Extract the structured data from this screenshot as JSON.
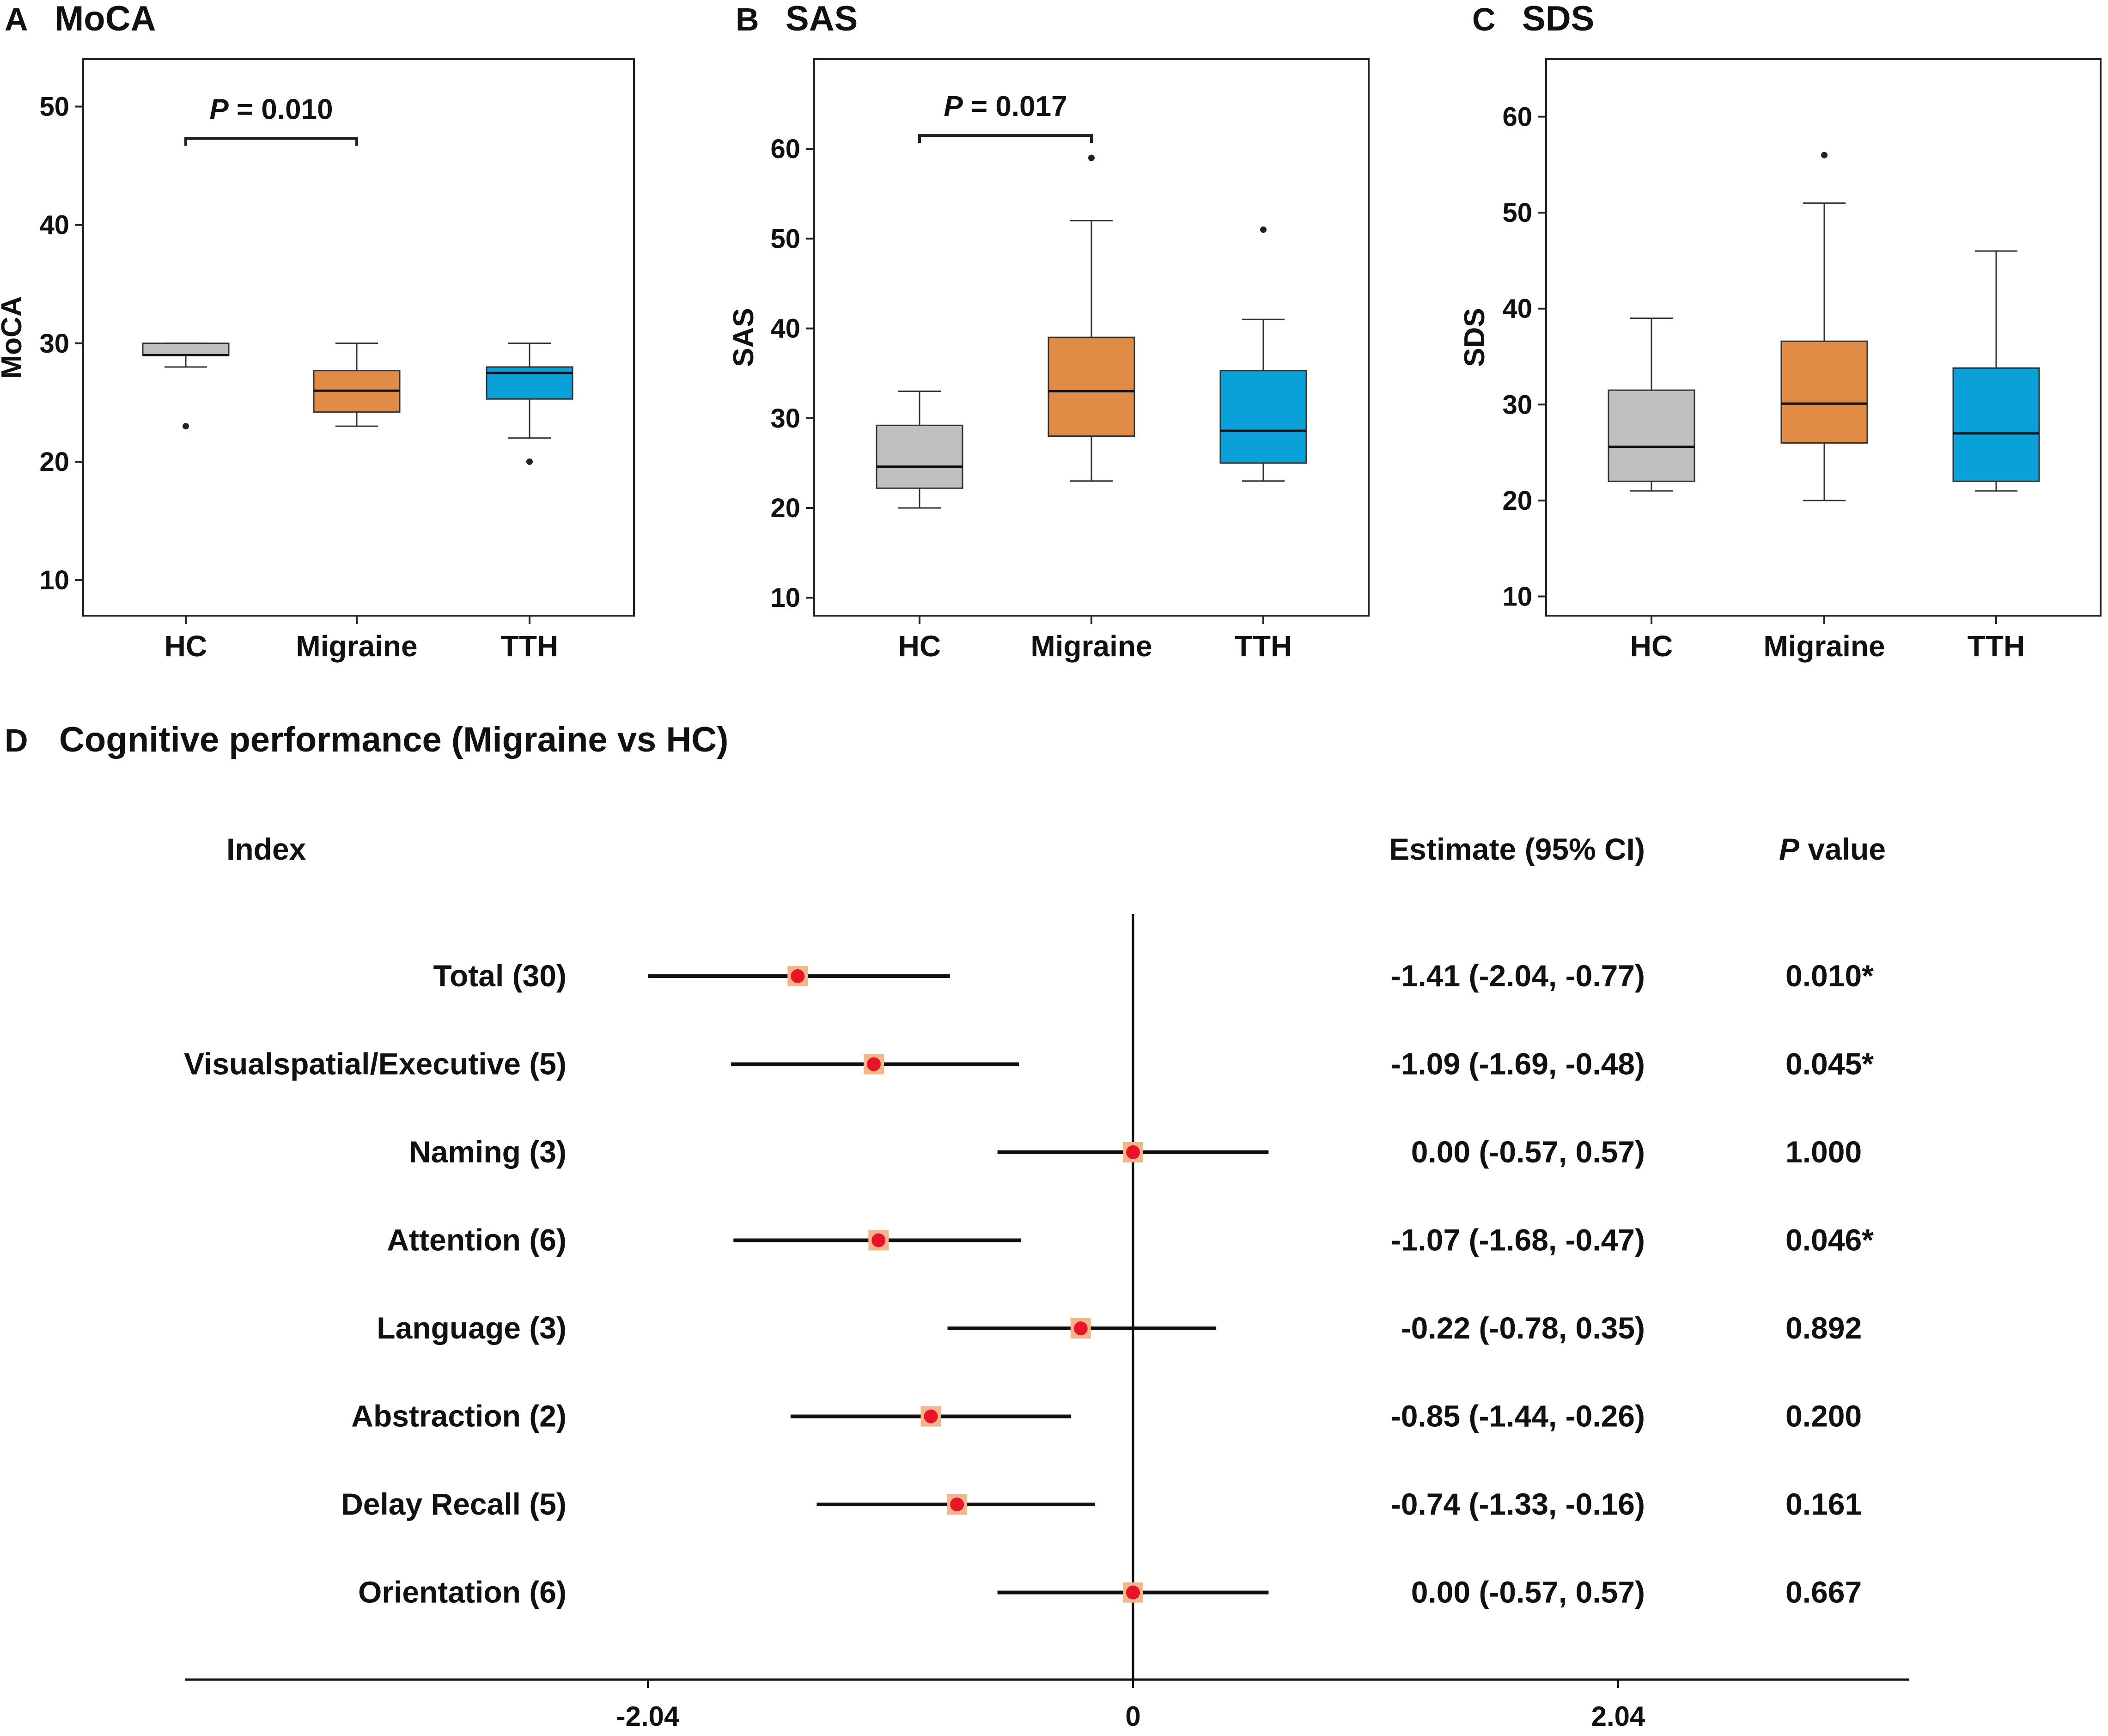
{
  "chart_data": [
    {
      "panel": "A",
      "type": "box",
      "title": "MoCA",
      "ylabel": "MoCA",
      "ylim": [
        7,
        54
      ],
      "yticks": [
        10,
        20,
        30,
        40,
        50
      ],
      "categories": [
        "HC",
        "Migraine",
        "TTH"
      ],
      "colors": [
        "#c0c0c0",
        "#e08c47",
        "#0aa0d8"
      ],
      "boxes": [
        {
          "whisker_low": 28,
          "q1": 29,
          "median": 29,
          "q3": 30,
          "whisker_high": 30,
          "outliers": [
            23
          ]
        },
        {
          "whisker_low": 23,
          "q1": 24.2,
          "median": 26,
          "q3": 27.7,
          "whisker_high": 30,
          "outliers": []
        },
        {
          "whisker_low": 22,
          "q1": 25.3,
          "median": 27.5,
          "q3": 28,
          "whisker_high": 30,
          "outliers": [
            20
          ]
        }
      ],
      "significance": {
        "from": 0,
        "to": 1,
        "y": 47.3,
        "p_label": "P",
        "p_value": "= 0.010"
      }
    },
    {
      "panel": "B",
      "type": "box",
      "title": "SAS",
      "ylabel": "SAS",
      "ylim": [
        8,
        70
      ],
      "yticks": [
        10,
        20,
        30,
        40,
        50,
        60
      ],
      "categories": [
        "HC",
        "Migraine",
        "TTH"
      ],
      "colors": [
        "#c0c0c0",
        "#e08c47",
        "#0aa0d8"
      ],
      "boxes": [
        {
          "whisker_low": 20,
          "q1": 22.2,
          "median": 24.6,
          "q3": 29.2,
          "whisker_high": 33,
          "outliers": []
        },
        {
          "whisker_low": 23,
          "q1": 28,
          "median": 33,
          "q3": 39,
          "whisker_high": 52,
          "outliers": [
            59
          ]
        },
        {
          "whisker_low": 23,
          "q1": 25,
          "median": 28.6,
          "q3": 35.3,
          "whisker_high": 41,
          "outliers": [
            51
          ]
        }
      ],
      "significance": {
        "from": 0,
        "to": 1,
        "y": 61.5,
        "p_label": "P",
        "p_value": "= 0.017"
      }
    },
    {
      "panel": "C",
      "type": "box",
      "title": "SDS",
      "ylabel": "SDS",
      "ylim": [
        8,
        66
      ],
      "yticks": [
        10,
        20,
        30,
        40,
        50,
        60
      ],
      "categories": [
        "HC",
        "Migraine",
        "TTH"
      ],
      "colors": [
        "#c0c0c0",
        "#e08c47",
        "#0aa0d8"
      ],
      "boxes": [
        {
          "whisker_low": 21,
          "q1": 22,
          "median": 25.6,
          "q3": 31.5,
          "whisker_high": 39,
          "outliers": []
        },
        {
          "whisker_low": 20,
          "q1": 26,
          "median": 30.1,
          "q3": 36.6,
          "whisker_high": 51,
          "outliers": [
            56
          ]
        },
        {
          "whisker_low": 21,
          "q1": 22,
          "median": 27,
          "q3": 33.8,
          "whisker_high": 46,
          "outliers": []
        }
      ]
    },
    {
      "panel": "D",
      "type": "forest",
      "title": "Cognitive performance (Migraine vs HC)",
      "headers": {
        "index": "Index",
        "estimate": "Estimate (95% CI)",
        "p_label": "P",
        "p_suffix": " value"
      },
      "xlim": [
        -3.94,
        3.2
      ],
      "xticks": [
        -2.04,
        0,
        2.04
      ],
      "xtick_labels": [
        "-2.04",
        "0",
        "2.04"
      ],
      "marker_fill": "#e8152a",
      "marker_box": "#f2b68a",
      "rows": [
        {
          "label": "Total (30)",
          "estimate": -1.41,
          "lower": -2.04,
          "upper": -0.77,
          "ci_text": "-1.41 (-2.04, -0.77)",
          "p": "0.010*"
        },
        {
          "label": "Visualspatial/Executive (5)",
          "estimate": -1.09,
          "lower": -1.69,
          "upper": -0.48,
          "ci_text": "-1.09 (-1.69, -0.48)",
          "p": "0.045*"
        },
        {
          "label": "Naming (3)",
          "estimate": 0.0,
          "lower": -0.57,
          "upper": 0.57,
          "ci_text": "0.00 (-0.57, 0.57)",
          "p": "1.000"
        },
        {
          "label": "Attention (6)",
          "estimate": -1.07,
          "lower": -1.68,
          "upper": -0.47,
          "ci_text": "-1.07 (-1.68, -0.47)",
          "p": "0.046*"
        },
        {
          "label": "Language (3)",
          "estimate": -0.22,
          "lower": -0.78,
          "upper": 0.35,
          "ci_text": "-0.22 (-0.78, 0.35)",
          "p": "0.892"
        },
        {
          "label": "Abstraction (2)",
          "estimate": -0.85,
          "lower": -1.44,
          "upper": -0.26,
          "ci_text": "-0.85 (-1.44, -0.26)",
          "p": "0.200"
        },
        {
          "label": "Delay Recall (5)",
          "estimate": -0.74,
          "lower": -1.33,
          "upper": -0.16,
          "ci_text": "-0.74 (-1.33, -0.16)",
          "p": "0.161"
        },
        {
          "label": "Orientation (6)",
          "estimate": 0.0,
          "lower": -0.57,
          "upper": 0.57,
          "ci_text": "0.00 (-0.57, 0.57)",
          "p": "0.667"
        }
      ]
    }
  ]
}
